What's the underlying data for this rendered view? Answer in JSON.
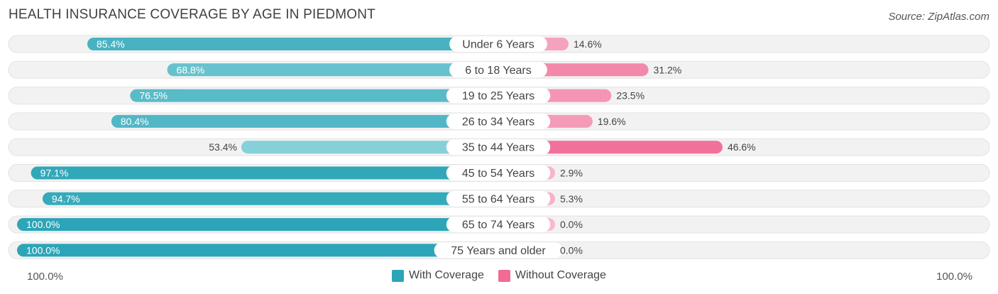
{
  "title": "HEALTH INSURANCE COVERAGE BY AGE IN PIEDMONT",
  "source": "Source: ZipAtlas.com",
  "axis": {
    "left_label": "100.0%",
    "right_label": "100.0%"
  },
  "legend": [
    {
      "label": "With Coverage",
      "color": "#2ba5b7"
    },
    {
      "label": "Without Coverage",
      "color": "#f06c95"
    }
  ],
  "chart_data": {
    "type": "bar",
    "orientation": "diverging-horizontal",
    "title": "HEALTH INSURANCE COVERAGE BY AGE IN PIEDMONT",
    "categories": [
      "Under 6 Years",
      "6 to 18 Years",
      "19 to 25 Years",
      "26 to 34 Years",
      "35 to 44 Years",
      "45 to 54 Years",
      "55 to 64 Years",
      "65 to 74 Years",
      "75 Years and older"
    ],
    "series": [
      {
        "name": "With Coverage",
        "values": [
          85.4,
          68.8,
          76.5,
          80.4,
          53.4,
          97.1,
          94.7,
          100.0,
          100.0
        ],
        "labels": [
          "85.4%",
          "68.8%",
          "76.5%",
          "80.4%",
          "53.4%",
          "97.1%",
          "94.7%",
          "100.0%",
          "100.0%"
        ]
      },
      {
        "name": "Without Coverage",
        "values": [
          14.6,
          31.2,
          23.5,
          19.6,
          46.6,
          2.9,
          5.3,
          0.0,
          0.0
        ],
        "labels": [
          "14.6%",
          "31.2%",
          "23.5%",
          "19.6%",
          "46.6%",
          "2.9%",
          "5.3%",
          "0.0%",
          "0.0%"
        ]
      }
    ],
    "xlim": [
      0,
      100
    ],
    "legend_position": "bottom-center"
  }
}
